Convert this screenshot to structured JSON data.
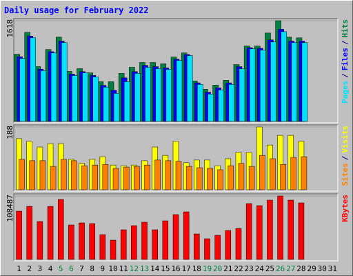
{
  "title": "Daily usage for February 2022",
  "legend_separator": "/",
  "chart_data": [
    {
      "type": "bar",
      "ylim": [
        0,
        1618
      ],
      "yticks": [
        1618
      ],
      "series": [
        {
          "name": "Hits",
          "color": "#008040",
          "values": [
            1079,
            1431,
            881,
            1156,
            1354,
            804,
            848,
            781,
            638,
            638,
            771,
            870,
            947,
            947,
            925,
            1035,
            1101,
            649,
            517,
            583,
            660,
            914,
            1211,
            1211,
            1420,
            1618,
            1354,
            1343,
            null,
            null,
            null
          ]
        },
        {
          "name": "Files",
          "color": "#0000ff",
          "values": [
            1040,
            1370,
            840,
            1120,
            1290,
            760,
            800,
            740,
            580,
            500,
            700,
            800,
            900,
            880,
            860,
            1000,
            1075,
            620,
            470,
            540,
            620,
            880,
            1185,
            1175,
            1310,
            1480,
            1290,
            1290,
            null,
            null,
            null
          ]
        },
        {
          "name": "Pages",
          "color": "#00e0ff",
          "values": [
            1013,
            1343,
            815,
            1101,
            1266,
            737,
            781,
            715,
            550,
            451,
            638,
            771,
            870,
            848,
            837,
            980,
            1057,
            594,
            440,
            506,
            594,
            848,
            1167,
            1145,
            1277,
            1442,
            1266,
            1266,
            null,
            null,
            null
          ]
        }
      ]
    },
    {
      "type": "bar",
      "ylim": [
        0,
        188
      ],
      "yticks": [
        188
      ],
      "series": [
        {
          "name": "Visits",
          "color": "#ffff00",
          "values": [
            153,
            145,
            128,
            138,
            138,
            91,
            79,
            91,
            99,
            74,
            72,
            74,
            87,
            128,
            103,
            145,
            81,
            89,
            89,
            72,
            93,
            112,
            112,
            188,
            134,
            163,
            163,
            145,
            null,
            null,
            null
          ]
        },
        {
          "name": "Sites",
          "color": "#ff8000",
          "values": [
            91,
            87,
            87,
            70,
            91,
            87,
            72,
            74,
            76,
            64,
            68,
            70,
            74,
            89,
            87,
            85,
            70,
            66,
            64,
            60,
            72,
            79,
            70,
            103,
            93,
            76,
            97,
            99,
            null,
            null,
            null
          ]
        }
      ]
    },
    {
      "type": "bar",
      "ylim": [
        0,
        108487
      ],
      "yticks": [
        108487
      ],
      "categories": [
        1,
        2,
        3,
        4,
        5,
        6,
        7,
        8,
        9,
        10,
        11,
        12,
        13,
        14,
        15,
        16,
        17,
        18,
        19,
        20,
        21,
        22,
        23,
        24,
        25,
        26,
        27,
        28,
        29,
        30,
        31
      ],
      "weekends": [
        5,
        6,
        12,
        13,
        19,
        20,
        26,
        27
      ],
      "weekend_color": "#008040",
      "series": [
        {
          "name": "KBytes",
          "color": "#ff0000",
          "values": [
            82530,
            90783,
            64845,
            90783,
            102573,
            58950,
            62487,
            61308,
            42444,
            33012,
            50697,
            57771,
            63666,
            50697,
            66024,
            76635,
            81351,
            43623,
            35370,
            41265,
            49518,
            53055,
            95499,
            91962,
            101394,
            108487,
            101394,
            96678,
            null,
            null,
            null
          ]
        }
      ]
    }
  ]
}
